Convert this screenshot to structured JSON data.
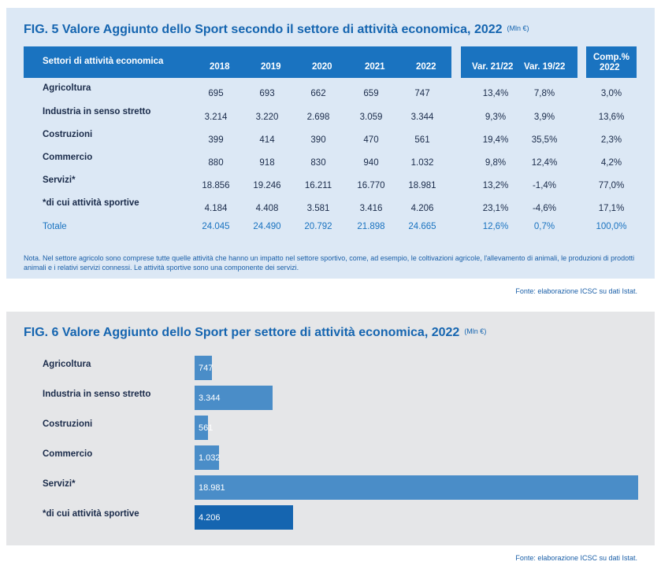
{
  "fig5": {
    "title": "FIG. 5  Valore Aggiunto dello Sport secondo il settore di attività economica, 2022",
    "unit": "(Mln €)",
    "header": {
      "sector": "Settori di attività economica",
      "years": [
        "2018",
        "2019",
        "2020",
        "2021",
        "2022"
      ],
      "var2122": "Var. 21/22",
      "var1922": "Var. 19/22",
      "comp_line1": "Comp.%",
      "comp_line2": "2022"
    },
    "rows": [
      {
        "label": "Agricoltura",
        "values": [
          "695",
          "693",
          "662",
          "659",
          "747"
        ],
        "var2122": "13,4%",
        "var1922": "7,8%",
        "comp": "3,0%"
      },
      {
        "label": "Industria in senso stretto",
        "values": [
          "3.214",
          "3.220",
          "2.698",
          "3.059",
          "3.344"
        ],
        "var2122": "9,3%",
        "var1922": "3,9%",
        "comp": "13,6%"
      },
      {
        "label": "Costruzioni",
        "values": [
          "399",
          "414",
          "390",
          "470",
          "561"
        ],
        "var2122": "19,4%",
        "var1922": "35,5%",
        "comp": "2,3%"
      },
      {
        "label": "Commercio",
        "values": [
          "880",
          "918",
          "830",
          "940",
          "1.032"
        ],
        "var2122": "9,8%",
        "var1922": "12,4%",
        "comp": "4,2%"
      },
      {
        "label": "Servizi*",
        "values": [
          "18.856",
          "19.246",
          "16.211",
          "16.770",
          "18.981"
        ],
        "var2122": "13,2%",
        "var1922": "-1,4%",
        "comp": "77,0%"
      },
      {
        "label": "*di cui attività sportive",
        "values": [
          "4.184",
          "4.408",
          "3.581",
          "3.416",
          "4.206"
        ],
        "var2122": "23,1%",
        "var1922": "-4,6%",
        "comp": "17,1%"
      },
      {
        "label": "Totale",
        "values": [
          "24.045",
          "24.490",
          "20.792",
          "21.898",
          "24.665"
        ],
        "var2122": "12,6%",
        "var1922": "0,7%",
        "comp": "100,0%"
      }
    ],
    "note": "Nota. Nel settore agricolo sono comprese tutte quelle attività che hanno un impatto nel settore sportivo, come, ad esempio, le coltivazioni agricole, l'allevamento di animali, le produzioni di prodotti animali e i relativi servizi connessi. Le attività sportive sono una componente dei servizi.",
    "source": "Fonte: elaborazione ICSC su dati Istat."
  },
  "fig6": {
    "title": "FIG. 6  Valore Aggiunto dello Sport per settore di attività economica, 2022",
    "unit": "(Mln €)",
    "source": "Fonte: elaborazione ICSC su dati Istat."
  },
  "colors": {
    "accent": "#1a73c0",
    "bar": "#4a8dc8",
    "bar_highlight": "#1565b0",
    "panel_blue": "#dce8f5",
    "panel_grey": "#e5e6e8"
  },
  "chart_data": [
    {
      "type": "table",
      "title": "FIG. 5  Valore Aggiunto dello Sport secondo il settore di attività economica, 2022",
      "columns": [
        "Settori di attività economica",
        "2018",
        "2019",
        "2020",
        "2021",
        "2022",
        "Var. 21/22",
        "Var. 19/22",
        "Comp.% 2022"
      ]
    },
    {
      "type": "bar",
      "orientation": "horizontal",
      "title": "FIG. 6  Valore Aggiunto dello Sport per settore di attività economica, 2022",
      "categories": [
        "Agricoltura",
        "Industria in senso stretto",
        "Costruzioni",
        "Commercio",
        "Servizi*",
        "*di cui attività sportive"
      ],
      "values": [
        747,
        3344,
        561,
        1032,
        18981,
        4206
      ],
      "value_labels": [
        "747",
        "3.344",
        "561",
        "1.032",
        "18.981",
        "4.206"
      ],
      "highlight_index": 5,
      "xlim": [
        0,
        18981
      ],
      "grid": false
    }
  ]
}
